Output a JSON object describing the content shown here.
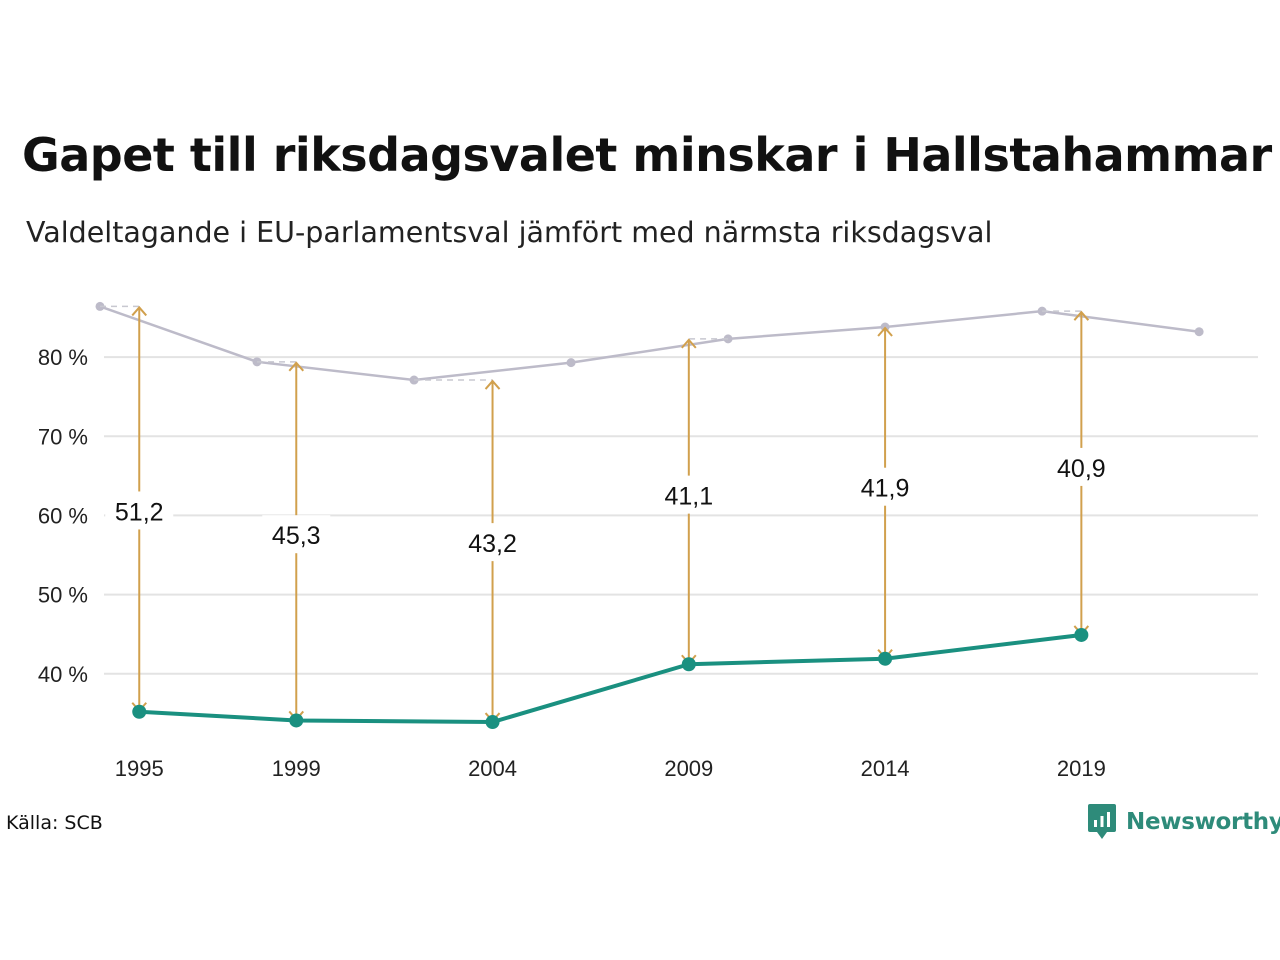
{
  "header": {
    "title": "Gapet till riksdagsvalet minskar i Hallstahammar",
    "subtitle": "Valdeltagande i EU-parlamentsval jämfört med närmsta riksdagsval"
  },
  "footer": {
    "source": "Källa: SCB",
    "brand": "Newsworthy"
  },
  "colors": {
    "eu_line": "#1a9080",
    "riksdag_line": "#bdbbc9",
    "gap_arrow": "#d1a04d",
    "grid": "#e3e3e3"
  },
  "chart_data": {
    "type": "line",
    "title": "Gapet till riksdagsvalet minskar i Hallstahammar",
    "subtitle": "Valdeltagande i EU-parlamentsval jämfört med närmsta riksdagsval",
    "xlabel": "",
    "ylabel": "",
    "x_ticks": [
      "1995",
      "1999",
      "2004",
      "2009",
      "2014",
      "2019"
    ],
    "y_ticks": [
      40,
      50,
      60,
      70,
      80
    ],
    "y_tick_suffix": " %",
    "xlim": [
      1994,
      2023.5
    ],
    "ylim": [
      31,
      91
    ],
    "grid": true,
    "series": [
      {
        "key": "riksdag",
        "x": [
          1994,
          1998,
          2002,
          2006,
          2010,
          2014,
          2018,
          2022
        ],
        "values": [
          86.4,
          79.4,
          77.1,
          79.3,
          82.3,
          83.8,
          85.8,
          83.2
        ]
      },
      {
        "key": "eu",
        "x": [
          1995,
          1999,
          2004,
          2009,
          2014,
          2019
        ],
        "values": [
          35.2,
          34.1,
          33.9,
          41.2,
          41.9,
          44.9
        ]
      }
    ],
    "gaps": [
      {
        "x": 1995,
        "label": "51,2",
        "from": 35.2,
        "to": 86.4
      },
      {
        "x": 1999,
        "label": "45,3",
        "from": 34.1,
        "to": 79.4
      },
      {
        "x": 2004,
        "label": "43,2",
        "from": 33.9,
        "to": 77.1
      },
      {
        "x": 2009,
        "label": "41,1",
        "from": 41.2,
        "to": 82.3
      },
      {
        "x": 2014,
        "label": "41,9",
        "from": 41.9,
        "to": 83.8
      },
      {
        "x": 2019,
        "label": "40,9",
        "from": 44.9,
        "to": 85.8
      }
    ]
  }
}
